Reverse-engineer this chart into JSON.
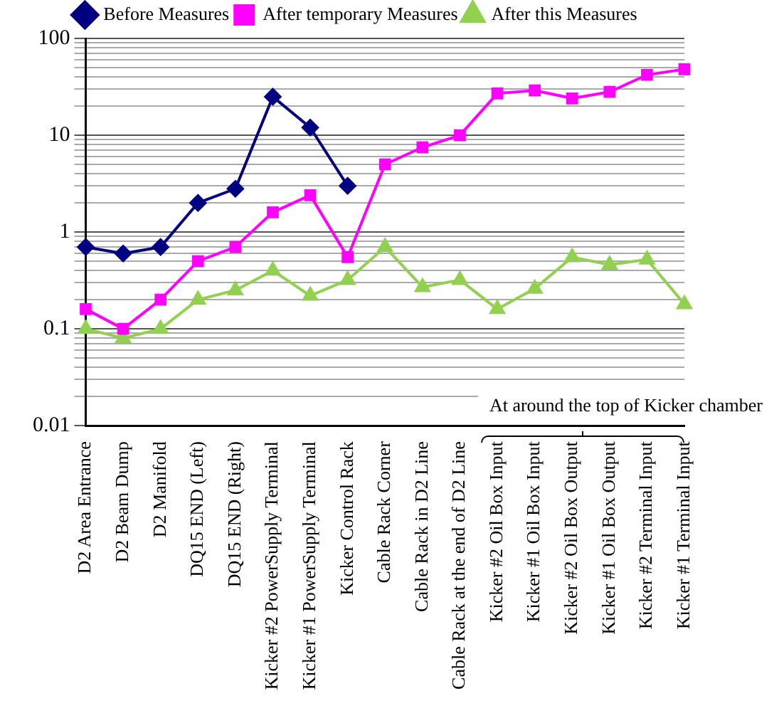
{
  "chart_data": {
    "type": "line",
    "categories": [
      "D2 Area Entrance",
      "D2 Beam Dump",
      "D2 Manifold",
      "DQ15 END (Left)",
      "DQ15 END (Right)",
      "Kicker #2 PowerSupply Terminal",
      "Kicker #1 PowerSupply Terminal",
      "Kicker Control Rack",
      "Cable Rack Corner",
      "Cable Rack in D2 Line",
      "Cable Rack at the end of D2 Line",
      "Kicker #2 Oil Box Input",
      "Kicker #1 Oil Box Input",
      "Kicker #2 Oil Box Output",
      "Kicker #1 Oil Box Output",
      "Kicker #2 Terminal Input",
      "Kicker #1 Terminal Input"
    ],
    "series": [
      {
        "name": "Before Measures",
        "color": "#000080",
        "marker": "diamond",
        "values": [
          0.7,
          0.6,
          0.7,
          2,
          2.8,
          25,
          12,
          3,
          null,
          null,
          null,
          null,
          null,
          null,
          null,
          null,
          null
        ]
      },
      {
        "name": "After temporary Measures",
        "color": "#ff00ff",
        "marker": "square",
        "values": [
          0.16,
          0.1,
          0.2,
          0.5,
          0.7,
          1.6,
          2.4,
          0.55,
          5,
          7.5,
          10,
          27,
          29,
          24,
          28,
          42,
          48
        ]
      },
      {
        "name": "After this Measures",
        "color": "#92d050",
        "marker": "triangle",
        "values": [
          0.1,
          0.08,
          0.1,
          0.2,
          0.25,
          0.4,
          0.22,
          0.32,
          0.7,
          0.27,
          0.32,
          0.16,
          0.26,
          0.55,
          0.46,
          0.52,
          0.18
        ]
      }
    ],
    "log": "y",
    "ylim": [
      0.01,
      100
    ],
    "yticks": [
      0.01,
      {
        "value": 0.02,
        "label": null
      },
      {
        "value": 0.03,
        "label": null
      },
      {
        "value": 0.04,
        "label": null
      },
      {
        "value": 0.05,
        "label": null
      },
      {
        "value": 0.06,
        "label": null
      },
      {
        "value": 0.07,
        "label": null
      },
      {
        "value": 0.08,
        "label": null
      },
      {
        "value": 0.09,
        "label": null
      },
      0.1,
      {
        "value": 0.2,
        "label": null
      },
      {
        "value": 0.3,
        "label": null
      },
      {
        "value": 0.4,
        "label": null
      },
      {
        "value": 0.5,
        "label": null
      },
      {
        "value": 0.6,
        "label": null
      },
      {
        "value": 0.7,
        "label": null
      },
      {
        "value": 0.8,
        "label": null
      },
      {
        "value": 0.9,
        "label": null
      },
      1,
      {
        "value": 2,
        "label": null
      },
      {
        "value": 3,
        "label": null
      },
      {
        "value": 4,
        "label": null
      },
      {
        "value": 5,
        "label": null
      },
      {
        "value": 6,
        "label": null
      },
      {
        "value": 7,
        "label": null
      },
      {
        "value": 8,
        "label": null
      },
      {
        "value": 9,
        "label": null
      },
      10,
      {
        "value": 20,
        "label": null
      },
      {
        "value": 30,
        "label": null
      },
      {
        "value": 40,
        "label": null
      },
      {
        "value": 50,
        "label": null
      },
      {
        "value": 60,
        "label": null
      },
      {
        "value": 70,
        "label": null
      },
      {
        "value": 80,
        "label": null
      },
      {
        "value": 90,
        "label": null
      },
      100
    ],
    "grid": "y",
    "legend": "top",
    "line_style": "solid",
    "annotations": [
      "At around the top of Kicker chamber"
    ]
  }
}
